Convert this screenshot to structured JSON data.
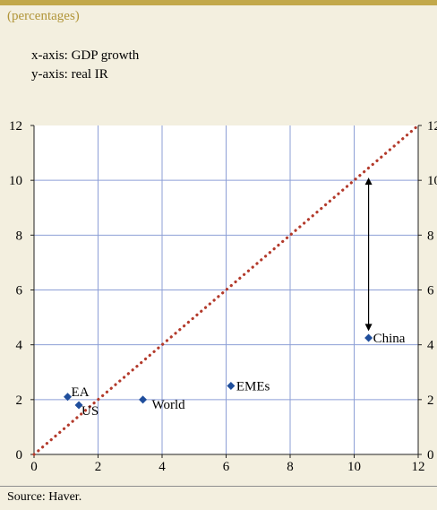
{
  "chart_data": {
    "type": "scatter",
    "subtitle": "(percentages)",
    "xlabel": "x-axis: GDP growth",
    "ylabel": "y-axis: real IR",
    "xlim": [
      0,
      12
    ],
    "ylim": [
      0,
      12
    ],
    "xticks": [
      0,
      2,
      4,
      6,
      8,
      10,
      12
    ],
    "yticks": [
      0,
      2,
      4,
      6,
      8,
      10,
      12
    ],
    "grid": true,
    "points": [
      {
        "label": "EA",
        "x": 1.05,
        "y": 2.1
      },
      {
        "label": "US",
        "x": 1.4,
        "y": 1.8
      },
      {
        "label": "World",
        "x": 3.4,
        "y": 2.0
      },
      {
        "label": "EMEs",
        "x": 6.15,
        "y": 2.5
      },
      {
        "label": "China",
        "x": 10.45,
        "y": 4.25
      }
    ],
    "reference_line": {
      "type": "45-degree",
      "from": [
        0,
        0
      ],
      "to": [
        12,
        12
      ]
    },
    "arrow": {
      "x": 10.45,
      "y_from": 4.5,
      "y_to": 10.1
    },
    "source": "Source: Haver."
  },
  "colors": {
    "background": "#f3efdf",
    "plot_background": "#ffffff",
    "grid": "#8d9fd6",
    "point": "#1f4e9c",
    "reference_line": "#b33a2b",
    "subtitle": "#b19539",
    "top_bar": "#c2a84a"
  }
}
